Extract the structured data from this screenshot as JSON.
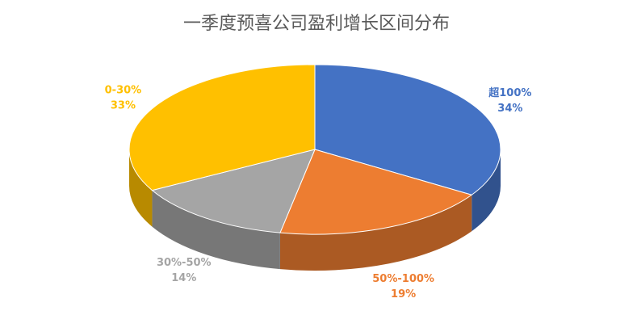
{
  "chart_data": {
    "type": "pie",
    "title": "一季度预喜公司盈利增长区间分布",
    "categories": [
      "超100%",
      "50%-100%",
      "30%-50%",
      "0-30%"
    ],
    "values": [
      34,
      19,
      14,
      33
    ],
    "value_labels": [
      "34%",
      "19%",
      "14%",
      "33%"
    ],
    "colors": [
      "#4472c4",
      "#ed7d31",
      "#a5a5a5",
      "#ffc000"
    ]
  }
}
